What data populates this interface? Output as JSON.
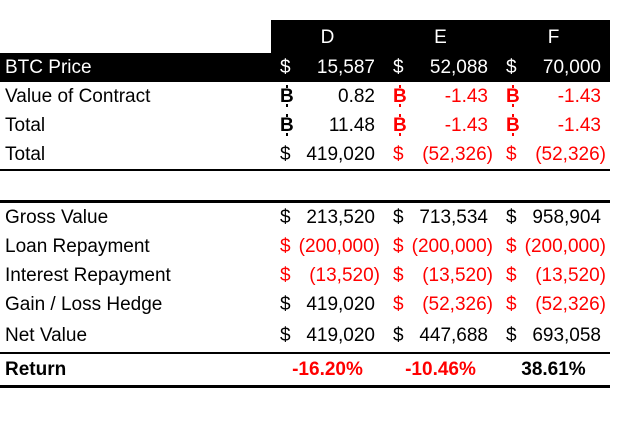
{
  "colors": {
    "negative": "#ff0000",
    "text": "#000000",
    "header_bg": "#000000",
    "header_text": "#ffffff"
  },
  "currencies": {
    "usd": "$",
    "btc": "₿",
    "btc_base": "B"
  },
  "table": {
    "columns": [
      "D",
      "E",
      "F"
    ],
    "rows": [
      {
        "kind": "price",
        "label": "BTC Price",
        "cells": [
          {
            "cur": "usd",
            "val": "15,587"
          },
          {
            "cur": "usd",
            "val": "52,088"
          },
          {
            "cur": "usd",
            "val": "70,000"
          }
        ]
      },
      {
        "kind": "normal",
        "label": "Value of Contract",
        "cells": [
          {
            "cur": "btc",
            "val": "0.82"
          },
          {
            "cur": "btc",
            "val": "-1.43",
            "neg": true
          },
          {
            "cur": "btc",
            "val": "-1.43",
            "neg": true
          }
        ]
      },
      {
        "kind": "normal",
        "label": "Total",
        "cells": [
          {
            "cur": "btc",
            "val": "11.48"
          },
          {
            "cur": "btc",
            "val": "-1.43",
            "neg": true
          },
          {
            "cur": "btc",
            "val": "-1.43",
            "neg": true
          }
        ]
      },
      {
        "kind": "subtotal",
        "label": "Total",
        "cells": [
          {
            "cur": "usd",
            "val": "419,020"
          },
          {
            "cur": "usd",
            "val": "(52,326)",
            "neg": true
          },
          {
            "cur": "usd",
            "val": "(52,326)",
            "neg": true
          }
        ]
      },
      {
        "kind": "spacer"
      },
      {
        "kind": "section",
        "label": "Gross Value",
        "cells": [
          {
            "cur": "usd",
            "val": "213,520"
          },
          {
            "cur": "usd",
            "val": "713,534"
          },
          {
            "cur": "usd",
            "val": "958,904"
          }
        ]
      },
      {
        "kind": "normal",
        "label": "Loan Repayment",
        "cells": [
          {
            "cur": "usd",
            "val": "(200,000)",
            "neg": true
          },
          {
            "cur": "usd",
            "val": "(200,000)",
            "neg": true
          },
          {
            "cur": "usd",
            "val": "(200,000)",
            "neg": true
          }
        ]
      },
      {
        "kind": "normal",
        "label": "Interest Repayment",
        "cells": [
          {
            "cur": "usd",
            "val": "(13,520)",
            "neg": true
          },
          {
            "cur": "usd",
            "val": "(13,520)",
            "neg": true
          },
          {
            "cur": "usd",
            "val": "(13,520)",
            "neg": true
          }
        ]
      },
      {
        "kind": "normal",
        "label": "Gain / Loss Hedge",
        "cells": [
          {
            "cur": "usd",
            "val": "419,020"
          },
          {
            "cur": "usd",
            "val": "(52,326)",
            "neg": true
          },
          {
            "cur": "usd",
            "val": "(52,326)",
            "neg": true
          }
        ]
      },
      {
        "kind": "net",
        "label": "Net Value",
        "cells": [
          {
            "cur": "usd",
            "val": "419,020"
          },
          {
            "cur": "usd",
            "val": "447,688"
          },
          {
            "cur": "usd",
            "val": "693,058"
          }
        ]
      },
      {
        "kind": "return",
        "label": "Return",
        "cells": [
          {
            "val": "-16.20%",
            "neg": true
          },
          {
            "val": "-10.46%",
            "neg": true
          },
          {
            "val": "38.61%"
          }
        ]
      }
    ]
  }
}
